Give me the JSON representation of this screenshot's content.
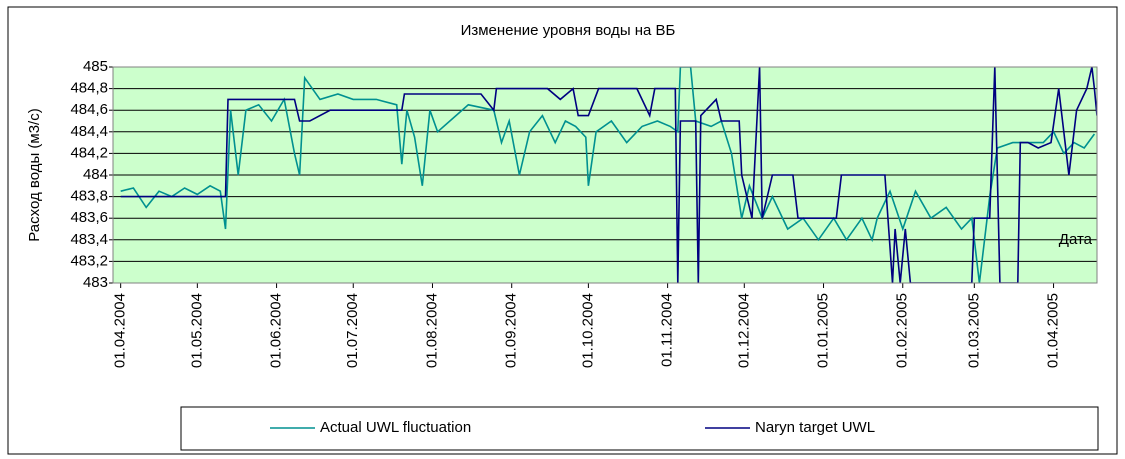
{
  "chart_data": {
    "type": "line",
    "title": "Изменение уровня воды на ВБ",
    "y_label": "Расход воды (м3/с)",
    "x_label": "Дата",
    "xlim": [
      "2004-03-29",
      "2005-04-18"
    ],
    "xticks": [
      {
        "value": "2004-04-01",
        "label": "01.04.2004"
      },
      {
        "value": "2004-05-01",
        "label": "01.05.2004"
      },
      {
        "value": "2004-06-01",
        "label": "01.06.2004"
      },
      {
        "value": "2004-07-01",
        "label": "01.07.2004"
      },
      {
        "value": "2004-08-01",
        "label": "01.08.2004"
      },
      {
        "value": "2004-09-01",
        "label": "01.09.2004"
      },
      {
        "value": "2004-10-01",
        "label": "01.10.2004"
      },
      {
        "value": "2004-11-01",
        "label": "01.11.2004"
      },
      {
        "value": "2004-12-01",
        "label": "01.12.2004"
      },
      {
        "value": "2005-01-01",
        "label": "01.01.2005"
      },
      {
        "value": "2005-02-01",
        "label": "01.02.2005"
      },
      {
        "value": "2005-03-01",
        "label": "01.03.2005"
      },
      {
        "value": "2005-04-01",
        "label": "01.04.2005"
      }
    ],
    "ylim": [
      483,
      485
    ],
    "yticks": [
      483,
      {
        "value": 483.2,
        "label": "483,2"
      },
      {
        "value": 483.4,
        "label": "483,4"
      },
      {
        "value": 483.6,
        "label": "483,6"
      },
      {
        "value": 483.8,
        "label": "483,8"
      },
      484,
      {
        "value": 484.2,
        "label": "484,2"
      },
      {
        "value": 484.4,
        "label": "484,4"
      },
      {
        "value": 484.6,
        "label": "484,6"
      },
      {
        "value": 484.8,
        "label": "484,8"
      },
      485
    ],
    "grid": true,
    "background": "#ccffcc",
    "series": [
      {
        "name": "Actual UWL fluctuation",
        "color": "#009090",
        "x": [
          "2004-04-01",
          "2004-04-06",
          "2004-04-11",
          "2004-04-16",
          "2004-04-21",
          "2004-04-26",
          "2004-05-01",
          "2004-05-06",
          "2004-05-10",
          "2004-05-12",
          "2004-05-14",
          "2004-05-17",
          "2004-05-20",
          "2004-05-25",
          "2004-05-30",
          "2004-06-04",
          "2004-06-08",
          "2004-06-10",
          "2004-06-12",
          "2004-06-18",
          "2004-06-25",
          "2004-07-01",
          "2004-07-10",
          "2004-07-18",
          "2004-07-20",
          "2004-07-22",
          "2004-07-25",
          "2004-07-28",
          "2004-07-31",
          "2004-08-03",
          "2004-08-15",
          "2004-08-25",
          "2004-08-28",
          "2004-08-31",
          "2004-09-04",
          "2004-09-08",
          "2004-09-13",
          "2004-09-18",
          "2004-09-22",
          "2004-09-26",
          "2004-09-30",
          "2004-10-01",
          "2004-10-04",
          "2004-10-10",
          "2004-10-16",
          "2004-10-22",
          "2004-10-28",
          "2004-11-02",
          "2004-11-05",
          "2004-11-06",
          "2004-11-10",
          "2004-11-12",
          "2004-11-18",
          "2004-11-22",
          "2004-11-26",
          "2004-11-30",
          "2004-12-03",
          "2004-12-08",
          "2004-12-12",
          "2004-12-18",
          "2004-12-24",
          "2004-12-30",
          "2005-01-05",
          "2005-01-10",
          "2005-01-16",
          "2005-01-20",
          "2005-01-22",
          "2005-01-27",
          "2005-02-01",
          "2005-02-06",
          "2005-02-12",
          "2005-02-18",
          "2005-02-24",
          "2005-02-28",
          "2005-03-03",
          "2005-03-07",
          "2005-03-10",
          "2005-03-16",
          "2005-03-22",
          "2005-03-28",
          "2005-04-01",
          "2005-04-05",
          "2005-04-09",
          "2005-04-13",
          "2005-04-17"
        ],
        "values": [
          483.85,
          483.88,
          483.7,
          483.85,
          483.8,
          483.88,
          483.82,
          483.9,
          483.85,
          483.5,
          484.6,
          484.0,
          484.6,
          484.65,
          484.5,
          484.7,
          484.2,
          484.0,
          484.9,
          484.7,
          484.75,
          484.7,
          484.7,
          484.65,
          484.1,
          484.6,
          484.35,
          483.9,
          484.6,
          484.4,
          484.65,
          484.6,
          484.3,
          484.5,
          484.0,
          484.4,
          484.55,
          484.3,
          484.5,
          484.45,
          484.35,
          483.9,
          484.4,
          484.5,
          484.3,
          484.45,
          484.5,
          484.45,
          484.4,
          485,
          485,
          484.5,
          484.45,
          484.5,
          484.2,
          483.6,
          483.9,
          483.6,
          483.8,
          483.5,
          483.6,
          483.4,
          483.6,
          483.4,
          483.6,
          483.4,
          483.6,
          483.85,
          483.5,
          483.85,
          483.6,
          483.7,
          483.5,
          483.6,
          483.0,
          483.8,
          484.25,
          484.3,
          484.3,
          484.3,
          484.4,
          484.2,
          484.3,
          484.25,
          484.38
        ]
      },
      {
        "name": "Naryn target UWL",
        "color": "#000080",
        "x": [
          "2004-04-01",
          "2004-05-12",
          "2004-05-13",
          "2004-06-08",
          "2004-06-10",
          "2004-06-14",
          "2004-06-22",
          "2004-07-01",
          "2004-07-20",
          "2004-07-21",
          "2004-08-20",
          "2004-08-25",
          "2004-08-26",
          "2004-09-05",
          "2004-09-15",
          "2004-09-20",
          "2004-09-25",
          "2004-09-27",
          "2004-10-01",
          "2004-10-05",
          "2004-10-20",
          "2004-10-25",
          "2004-10-27",
          "2004-11-01",
          "2004-11-04",
          "2004-11-05",
          "2004-11-06",
          "2004-11-12",
          "2004-11-13",
          "2004-11-14",
          "2004-11-20",
          "2004-11-22",
          "2004-11-29",
          "2004-11-30",
          "2004-12-04",
          "2004-12-07",
          "2004-12-08",
          "2004-12-12",
          "2004-12-20",
          "2004-12-22",
          "2005-01-01",
          "2005-01-06",
          "2005-01-08",
          "2005-01-25",
          "2005-01-28",
          "2005-01-29",
          "2005-01-31",
          "2005-02-02",
          "2005-02-04",
          "2005-02-28",
          "2005-03-01",
          "2005-03-07",
          "2005-03-09",
          "2005-03-11",
          "2005-03-18",
          "2005-03-19",
          "2005-03-22",
          "2005-03-26",
          "2005-03-31",
          "2005-04-03",
          "2005-04-07",
          "2005-04-10",
          "2005-04-14",
          "2005-04-16",
          "2005-04-17",
          "2005-04-18"
        ],
        "values": [
          483.8,
          483.8,
          484.7,
          484.7,
          484.5,
          484.5,
          484.6,
          484.6,
          484.6,
          484.75,
          484.75,
          484.6,
          484.8,
          484.8,
          484.8,
          484.7,
          484.8,
          484.55,
          484.55,
          484.8,
          484.8,
          484.55,
          484.8,
          484.8,
          484.8,
          483,
          484.5,
          484.5,
          483,
          484.55,
          484.7,
          484.5,
          484.5,
          484.0,
          483.6,
          485,
          483.6,
          484,
          484,
          483.6,
          483.6,
          483.6,
          484,
          484,
          483,
          483.5,
          483,
          483.5,
          483,
          483,
          483.6,
          483.6,
          485,
          483,
          483,
          484.3,
          484.3,
          484.25,
          484.3,
          484.8,
          484.0,
          484.6,
          484.8,
          485,
          484.8,
          484.55
        ]
      }
    ]
  }
}
